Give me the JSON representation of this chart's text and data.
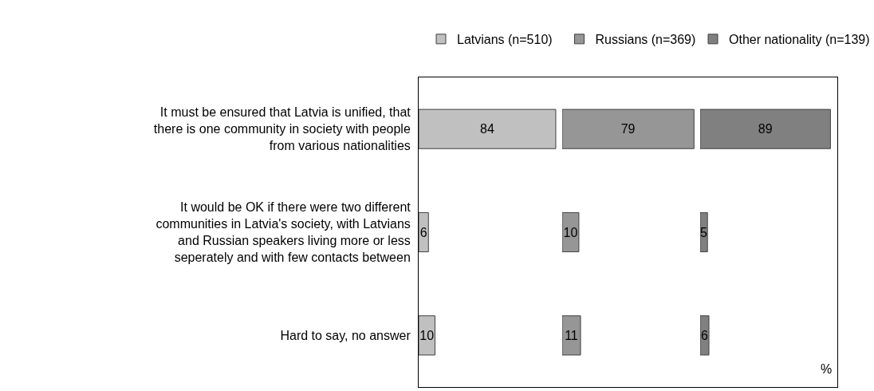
{
  "chart_data": [
    {
      "type": "bar",
      "orientation": "horizontal",
      "categories": [
        "It must be ensured that Latvia is unified, that there is one community in society with people from various nationalities",
        "It would be OK if there were two different communities in Latvia's society, with Latvians and Russian speakers living more or less seperately and with few contacts between",
        "Hard to say, no answer"
      ],
      "series": [
        {
          "name": "Latvians (n=510)",
          "color": "#c0c0c0",
          "values": [
            84,
            6,
            10
          ]
        }
      ],
      "data_labels": true,
      "legend": "top",
      "tick_labels": "y"
    },
    {
      "type": "bar",
      "orientation": "horizontal",
      "categories": [
        null,
        null,
        null
      ],
      "series": [
        {
          "name": "Russians (n=369)",
          "color": "#969696",
          "values": [
            79,
            10,
            11
          ]
        }
      ],
      "data_labels": true,
      "legend": "top",
      "tick_labels": false
    },
    {
      "type": "bar",
      "orientation": "horizontal",
      "categories": [
        null,
        null,
        null
      ],
      "series": [
        {
          "name": "Other nationality (n=139)",
          "color": "#808080",
          "values": [
            89,
            5,
            6
          ]
        }
      ],
      "data_labels": true,
      "legend": "top",
      "tick_labels": false,
      "annotations": [
        "%"
      ]
    }
  ]
}
